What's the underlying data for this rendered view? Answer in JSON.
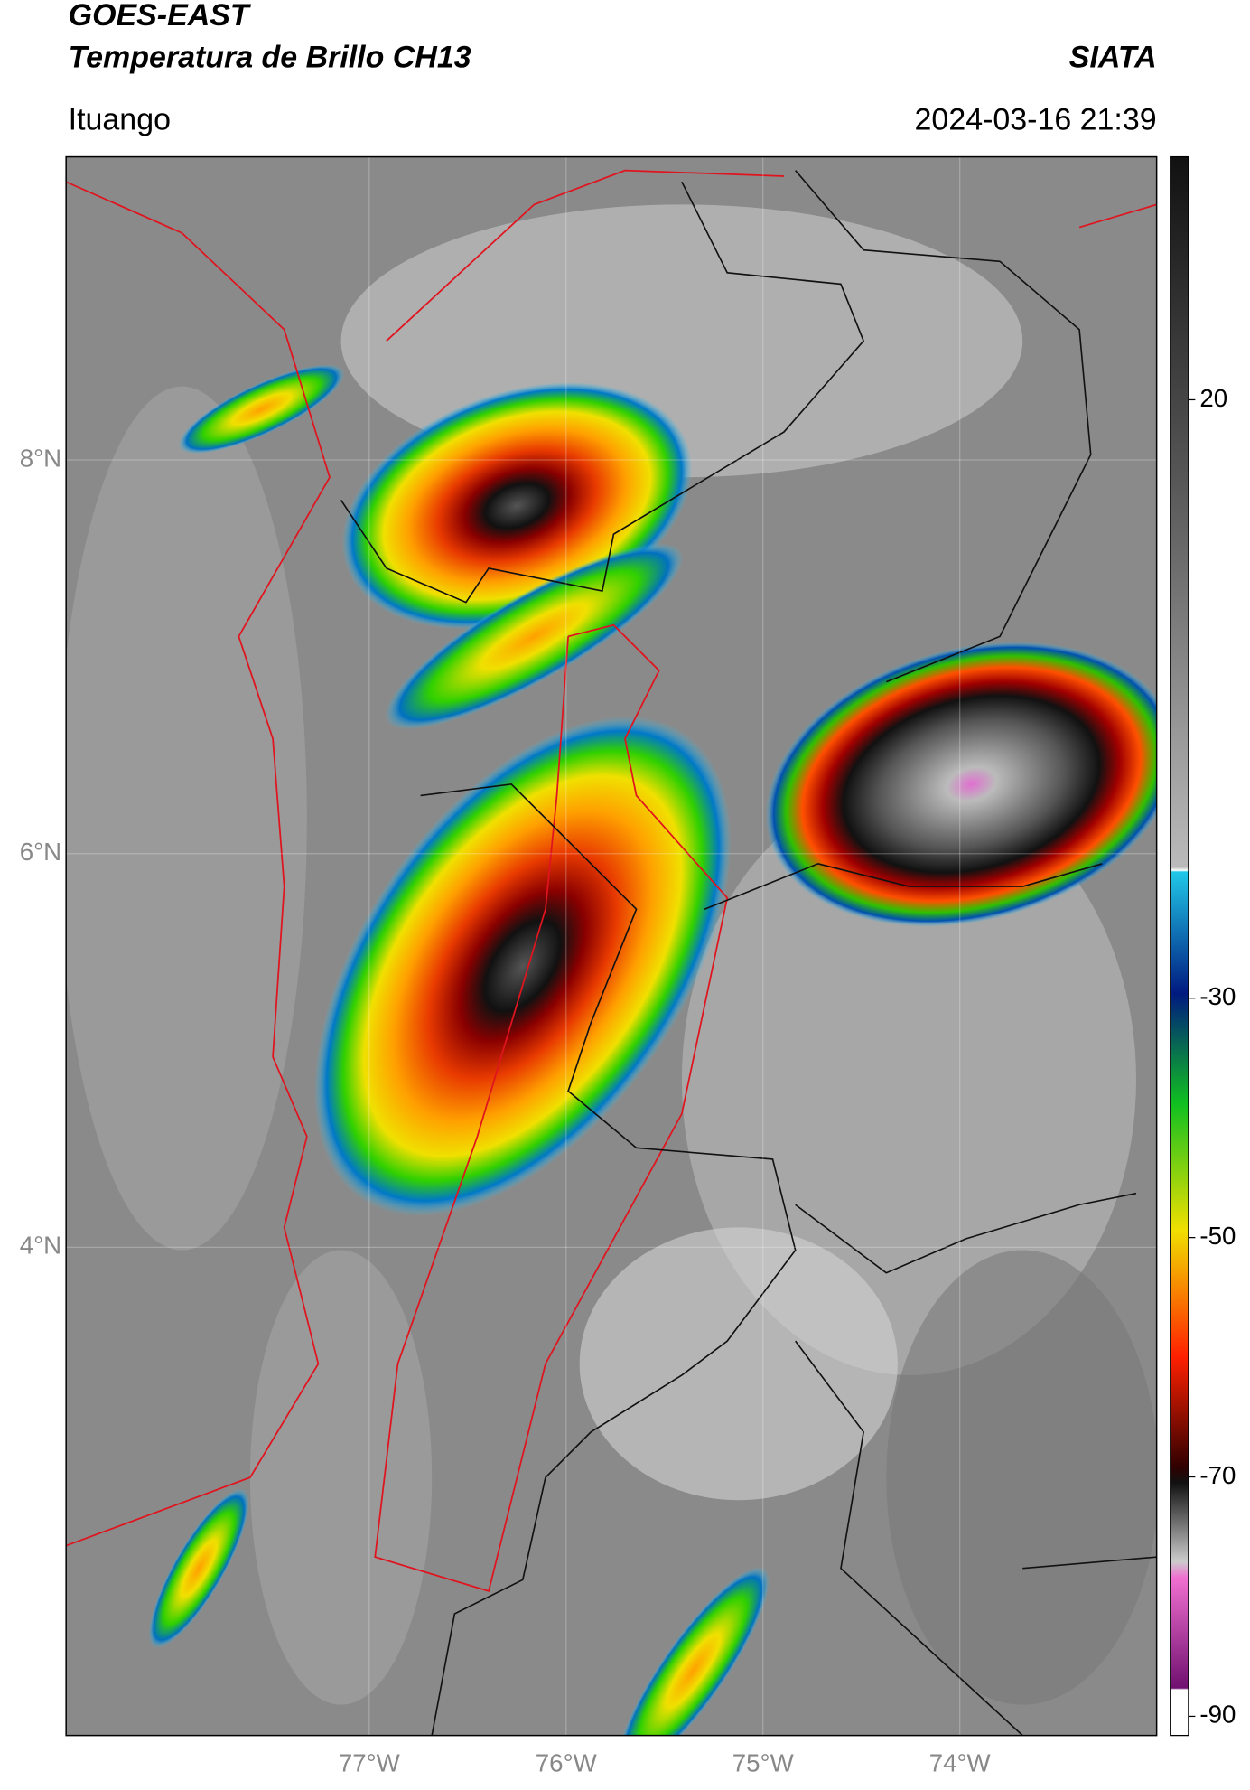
{
  "header": {
    "title": "GOES-EAST",
    "subtitle": "Temperatura de Brillo CH13",
    "source": "SIATA",
    "location": "Ituango",
    "datetime": "2024-03-16 21:39"
  },
  "map": {
    "xlim": [
      -78.54,
      -73.0
    ],
    "ylim": [
      1.52,
      9.54
    ],
    "xticks": [
      {
        "value": -77,
        "label": "77°W"
      },
      {
        "value": -76,
        "label": "76°W"
      },
      {
        "value": -75,
        "label": "75°W"
      },
      {
        "value": -74,
        "label": "74°W"
      }
    ],
    "yticks": [
      {
        "value": 8,
        "label": "8°N"
      },
      {
        "value": 6,
        "label": "6°N"
      },
      {
        "value": 4,
        "label": "4°N"
      }
    ]
  },
  "colorbar": {
    "lim": [
      -91.6,
      40.3
    ],
    "ticks": [
      20,
      -30,
      -50,
      -70,
      -90
    ]
  }
}
